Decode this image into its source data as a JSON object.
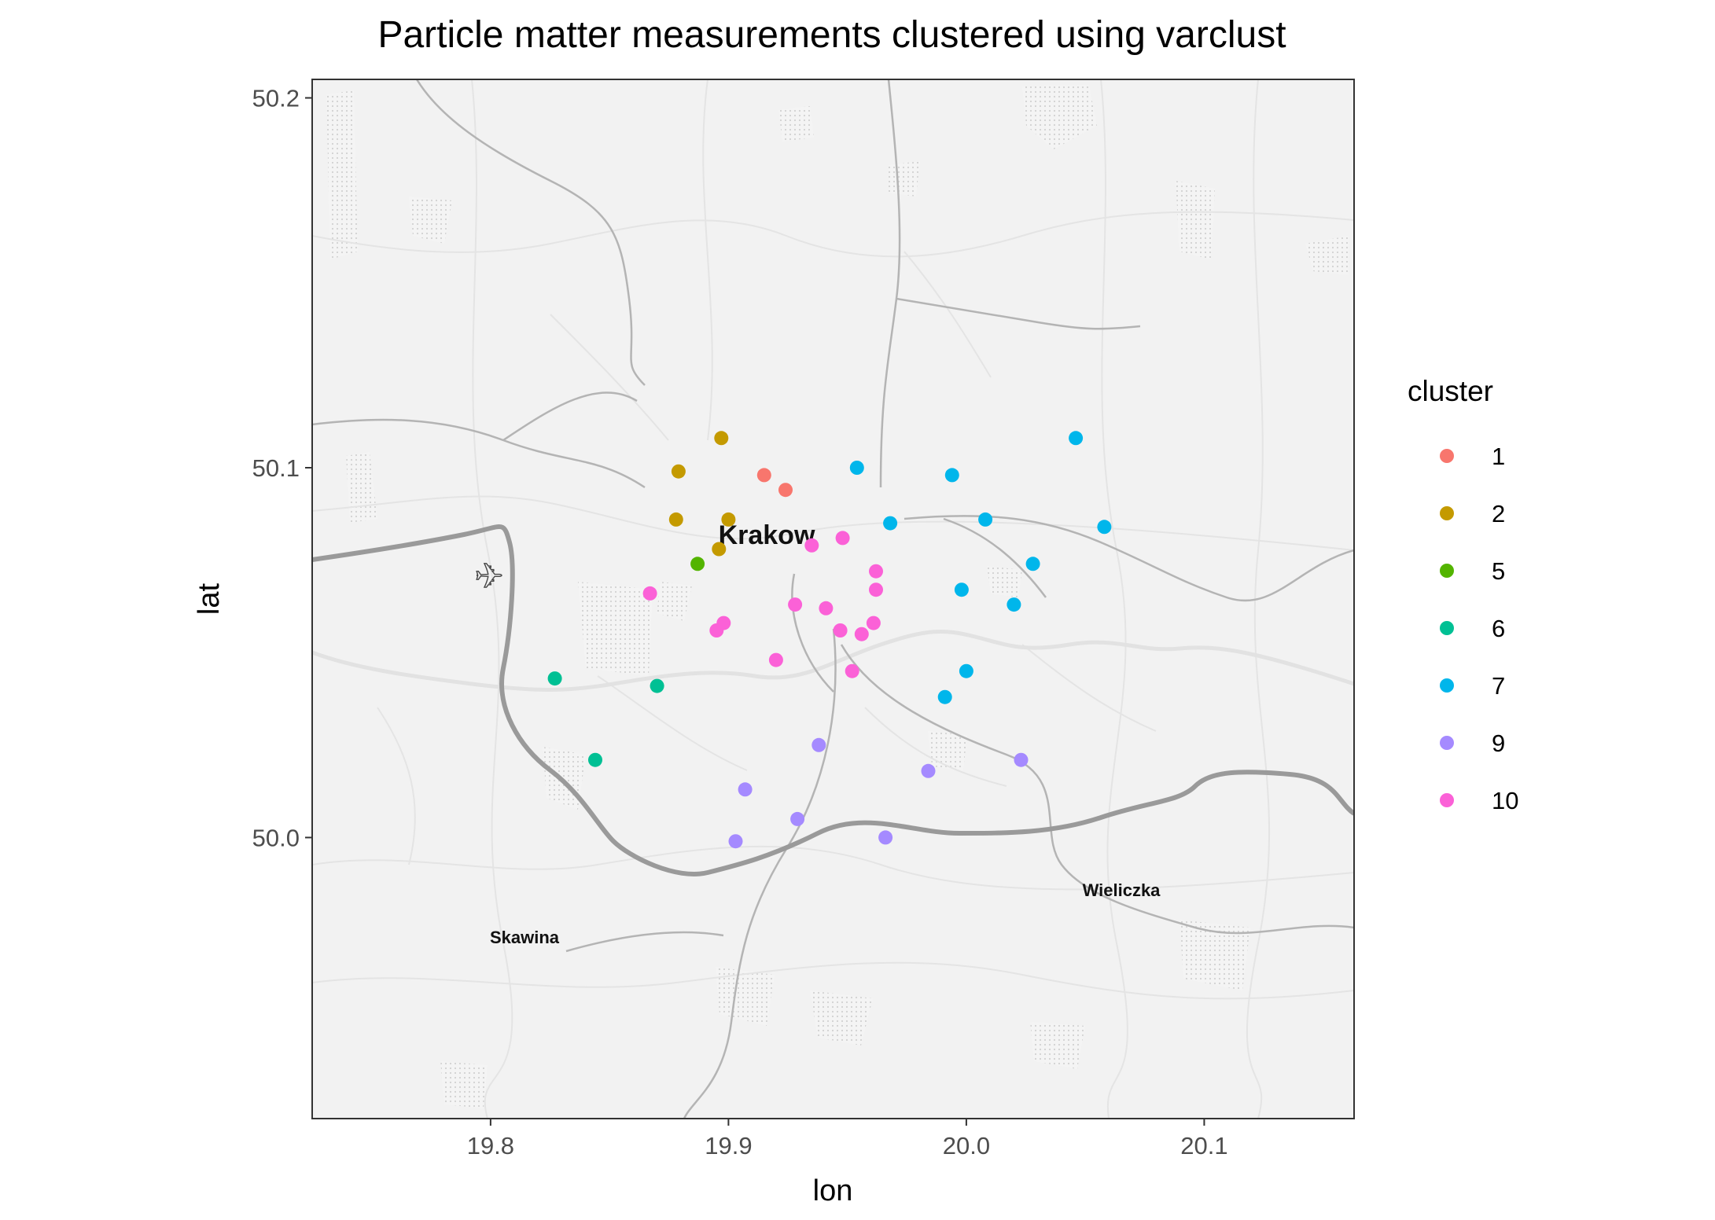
{
  "chart_data": {
    "type": "scatter",
    "title": "Particle matter measurements clustered using varclust",
    "xlabel": "lon",
    "ylabel": "lat",
    "xlim": [
      19.725,
      20.163
    ],
    "ylim": [
      49.924,
      50.205
    ],
    "x_ticks": [
      19.8,
      19.9,
      20.0,
      20.1
    ],
    "x_tick_labels": [
      "19.8",
      "19.9",
      "20.0",
      "20.1"
    ],
    "y_ticks": [
      50.0,
      50.1,
      50.2
    ],
    "y_tick_labels": [
      "50.0",
      "50.1",
      "50.2"
    ],
    "grid": false,
    "legend_title": "cluster",
    "legend_position": "right",
    "basemap": "grayscale road map",
    "map_labels": [
      {
        "text": "Krakow",
        "lon": 19.913,
        "lat": 50.083
      },
      {
        "text": "Skawina",
        "lon": 19.826,
        "lat": 49.974
      },
      {
        "text": "Wieliczka",
        "lon": 20.065,
        "lat": 49.988
      }
    ],
    "series": [
      {
        "name": "1",
        "color": "#F8766D",
        "points": [
          [
            19.915,
            50.098
          ],
          [
            19.924,
            50.094
          ]
        ]
      },
      {
        "name": "2",
        "color": "#C49A00",
        "points": [
          [
            19.897,
            50.108
          ],
          [
            19.879,
            50.099
          ],
          [
            19.878,
            50.086
          ],
          [
            19.9,
            50.086
          ],
          [
            19.896,
            50.078
          ]
        ]
      },
      {
        "name": "5",
        "color": "#53B400",
        "points": [
          [
            19.887,
            50.074
          ]
        ]
      },
      {
        "name": "6",
        "color": "#00C094",
        "points": [
          [
            19.827,
            50.043
          ],
          [
            19.87,
            50.041
          ],
          [
            19.844,
            50.021
          ]
        ]
      },
      {
        "name": "7",
        "color": "#00B6EB",
        "points": [
          [
            20.046,
            50.108
          ],
          [
            19.954,
            50.1
          ],
          [
            19.994,
            50.098
          ],
          [
            19.968,
            50.085
          ],
          [
            20.008,
            50.086
          ],
          [
            20.058,
            50.084
          ],
          [
            20.028,
            50.074
          ],
          [
            19.998,
            50.067
          ],
          [
            20.02,
            50.063
          ],
          [
            20.0,
            50.045
          ],
          [
            19.991,
            50.038
          ]
        ]
      },
      {
        "name": "9",
        "color": "#A58AFF",
        "points": [
          [
            19.938,
            50.025
          ],
          [
            20.023,
            50.021
          ],
          [
            19.984,
            50.018
          ],
          [
            19.907,
            50.013
          ],
          [
            19.929,
            50.005
          ],
          [
            19.903,
            49.999
          ],
          [
            19.966,
            50.0
          ]
        ]
      },
      {
        "name": "10",
        "color": "#FB61D7",
        "points": [
          [
            19.948,
            50.081
          ],
          [
            19.935,
            50.079
          ],
          [
            19.962,
            50.072
          ],
          [
            19.962,
            50.067
          ],
          [
            19.867,
            50.066
          ],
          [
            19.928,
            50.063
          ],
          [
            19.941,
            50.062
          ],
          [
            19.898,
            50.058
          ],
          [
            19.961,
            50.058
          ],
          [
            19.895,
            50.056
          ],
          [
            19.947,
            50.056
          ],
          [
            19.956,
            50.055
          ],
          [
            19.92,
            50.048
          ],
          [
            19.952,
            50.045
          ]
        ]
      }
    ]
  }
}
